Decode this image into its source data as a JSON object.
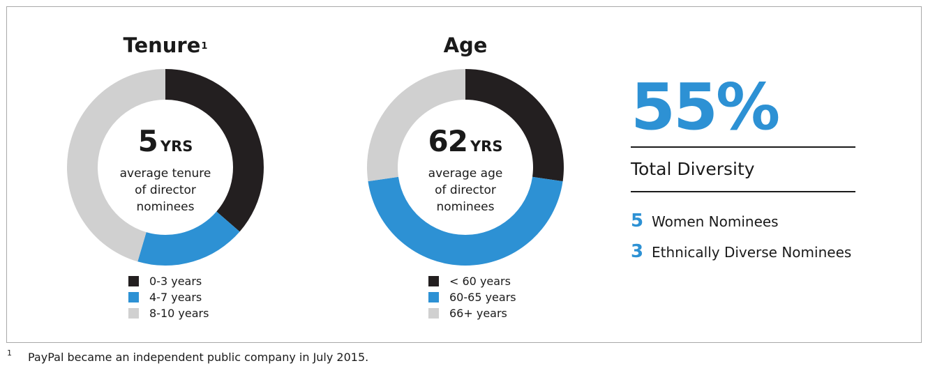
{
  "colors": {
    "dark": "#231f20",
    "blue": "#2d91d4",
    "light": "#d0d0d0",
    "text": "#1a1a1a"
  },
  "chart_data": [
    {
      "type": "pie",
      "title": "Tenure",
      "title_footnote": "1",
      "center_value": "5",
      "center_unit": "YRS",
      "center_caption": "average tenure\nof director\nnominees",
      "categories": [
        "0-3 years",
        "4-7 years",
        "8-10 years"
      ],
      "values": [
        4,
        2,
        5
      ]
    },
    {
      "type": "pie",
      "title": "Age",
      "center_value": "62",
      "center_unit": "YRS",
      "center_caption": "average age\nof director\nnominees",
      "categories": [
        "< 60 years",
        "60-65 years",
        "66+ years"
      ],
      "values": [
        3,
        5,
        3
      ]
    }
  ],
  "summary": {
    "total_diversity_value": "55%",
    "total_diversity_label": "Total Diversity",
    "stats": [
      {
        "value": "5",
        "label": "Women Nominees"
      },
      {
        "value": "3",
        "label": "Ethnically Diverse Nominees"
      }
    ]
  },
  "footnote": {
    "mark": "1",
    "text": "PayPal became an independent public company in July 2015."
  }
}
